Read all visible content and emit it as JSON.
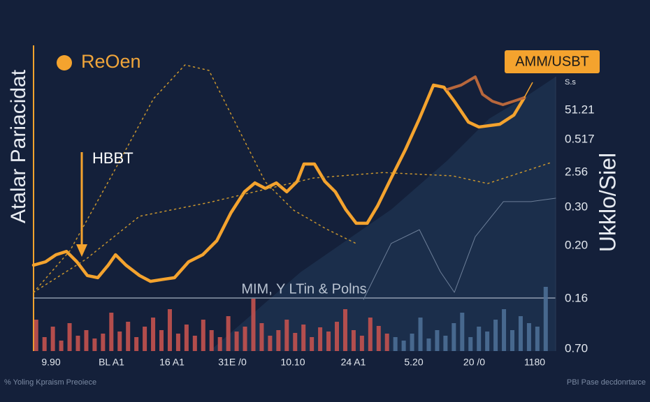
{
  "chart_data": {
    "type": "line",
    "title": "ReOen",
    "title_color": "#f0a53a",
    "y_label": "Atalar Pariacidat",
    "y2_label": "Ukklo/Siel",
    "annotations": [
      "HBBT",
      "AMM/USBT",
      "MIM, Y LTin & Polns"
    ],
    "x_labels": [
      "9.90",
      "BL A1",
      "16 A1",
      "31E /0",
      "10.10",
      "24 A1",
      "5.20",
      "20 /0",
      "1180"
    ],
    "right_labels": [
      "S.s",
      "51.21",
      "0.517",
      "2.56",
      "0.30",
      "0.20",
      "0.16",
      "0.70"
    ],
    "footer_left": "% Yoling Kpraism Preoiece",
    "footer_right": "PBI Pase decdonrtarce",
    "xlim": [
      0,
      100
    ],
    "ylim": [
      0,
      100
    ],
    "y2lim": [
      0,
      100
    ],
    "series": [
      {
        "color": "#f4a32e",
        "width": 4.5,
        "dash": "none",
        "x": [
          0,
          2.3,
          4.3,
          6.3,
          8.3,
          10.3,
          12.3,
          14.3,
          15.7,
          17.7,
          20.3,
          22.4,
          25.0,
          27.0,
          29.7,
          32.4,
          35.1,
          37.8,
          40.4,
          42.4,
          44.4,
          46.5,
          48.5,
          50.5,
          51.8,
          53.8,
          55.8,
          57.8,
          59.8,
          61.8,
          63.9,
          65.9,
          68.5,
          71.2,
          73.9,
          76.6,
          78.6,
          80.6,
          83.3,
          85.3,
          89.3,
          92.0,
          94.0
        ],
        "values": [
          28.1,
          29.2,
          31.5,
          32.6,
          29.2,
          24.7,
          24.0,
          28.1,
          31.5,
          28.1,
          24.7,
          22.8,
          23.5,
          24.0,
          29.2,
          31.5,
          36.1,
          45.2,
          52.1,
          55.0,
          53.2,
          55.0,
          52.1,
          55.5,
          61.2,
          61.2,
          55.5,
          52.1,
          46.3,
          41.8,
          41.8,
          47.5,
          56.6,
          65.8,
          76.0,
          87.0,
          86.3,
          81.7,
          74.9,
          73.3,
          74.2,
          77.2,
          82.9
        ]
      },
      {
        "color": "#b8673c",
        "width": 4,
        "dash": "none",
        "x": [
          79.3,
          81.9,
          84.6,
          86.0,
          87.9,
          89.9,
          91.9,
          94.0
        ],
        "values": [
          85.6,
          87.0,
          89.7,
          84.0,
          81.7,
          80.6,
          81.7,
          82.9
        ]
      },
      {
        "color": "#c9962e",
        "width": 1.5,
        "dash": "2 5",
        "x": [
          0,
          7.0,
          15.0,
          23.0,
          29.0,
          33.6,
          39.0,
          44.4,
          49.8,
          56.0,
          62.0
        ],
        "values": [
          19.2,
          32.9,
          57.5,
          82.6,
          93.6,
          91.8,
          73.5,
          55.3,
          46.1,
          40.0,
          35.0
        ]
      },
      {
        "color": "#c9962e",
        "width": 1.5,
        "dash": "2 5",
        "x": [
          0,
          10.0,
          20.3,
          33.6,
          53.6,
          67.0,
          80.3,
          87.0,
          99.0
        ],
        "values": [
          19.2,
          30.0,
          44.1,
          48.6,
          56.6,
          58.4,
          57.3,
          54.8,
          61.6
        ]
      },
      {
        "color": "#6d7f99",
        "width": 1,
        "dash": "none",
        "x": [
          63.2,
          68.5,
          73.9,
          77.9,
          80.6,
          84.6,
          90.0,
          95.3,
          100
        ],
        "values": [
          16.9,
          35.2,
          39.7,
          26.0,
          19.2,
          37.4,
          48.9,
          48.9,
          50.0
        ]
      }
    ],
    "bars": [
      {
        "color": "#c4524f",
        "x": [
          0.5,
          2.1,
          3.7,
          5.3,
          6.9,
          8.5,
          10.1,
          11.7,
          13.3,
          14.9,
          16.5,
          18.1,
          19.7,
          21.3,
          22.9,
          24.5,
          26.1,
          27.7,
          29.3,
          30.9,
          32.5,
          34.1,
          35.7,
          37.3,
          38.9,
          40.5,
          42.1,
          43.7,
          45.3,
          46.9,
          48.5,
          50.1,
          51.7,
          53.3,
          54.9,
          56.5,
          58.1,
          59.7,
          61.3,
          62.9,
          64.5,
          66.1,
          67.7
        ],
        "values": [
          45,
          20,
          35,
          15,
          40,
          22,
          30,
          18,
          25,
          55,
          28,
          42,
          20,
          35,
          48,
          30,
          60,
          25,
          38,
          22,
          45,
          30,
          20,
          50,
          28,
          35,
          75,
          40,
          22,
          30,
          45,
          26,
          38,
          20,
          34,
          28,
          42,
          60,
          30,
          22,
          48,
          36,
          25
        ]
      },
      {
        "color": "#4d6f96",
        "x": [
          69.3,
          70.9,
          72.5,
          74.1,
          75.7,
          77.3,
          78.9,
          80.5,
          82.1,
          83.7,
          85.3,
          86.9,
          88.5,
          90.1,
          91.7,
          93.3,
          94.9,
          96.5,
          98.1
        ],
        "values": [
          20,
          15,
          25,
          48,
          18,
          30,
          22,
          40,
          55,
          20,
          35,
          28,
          45,
          60,
          30,
          50,
          40,
          35,
          92
        ]
      }
    ]
  }
}
